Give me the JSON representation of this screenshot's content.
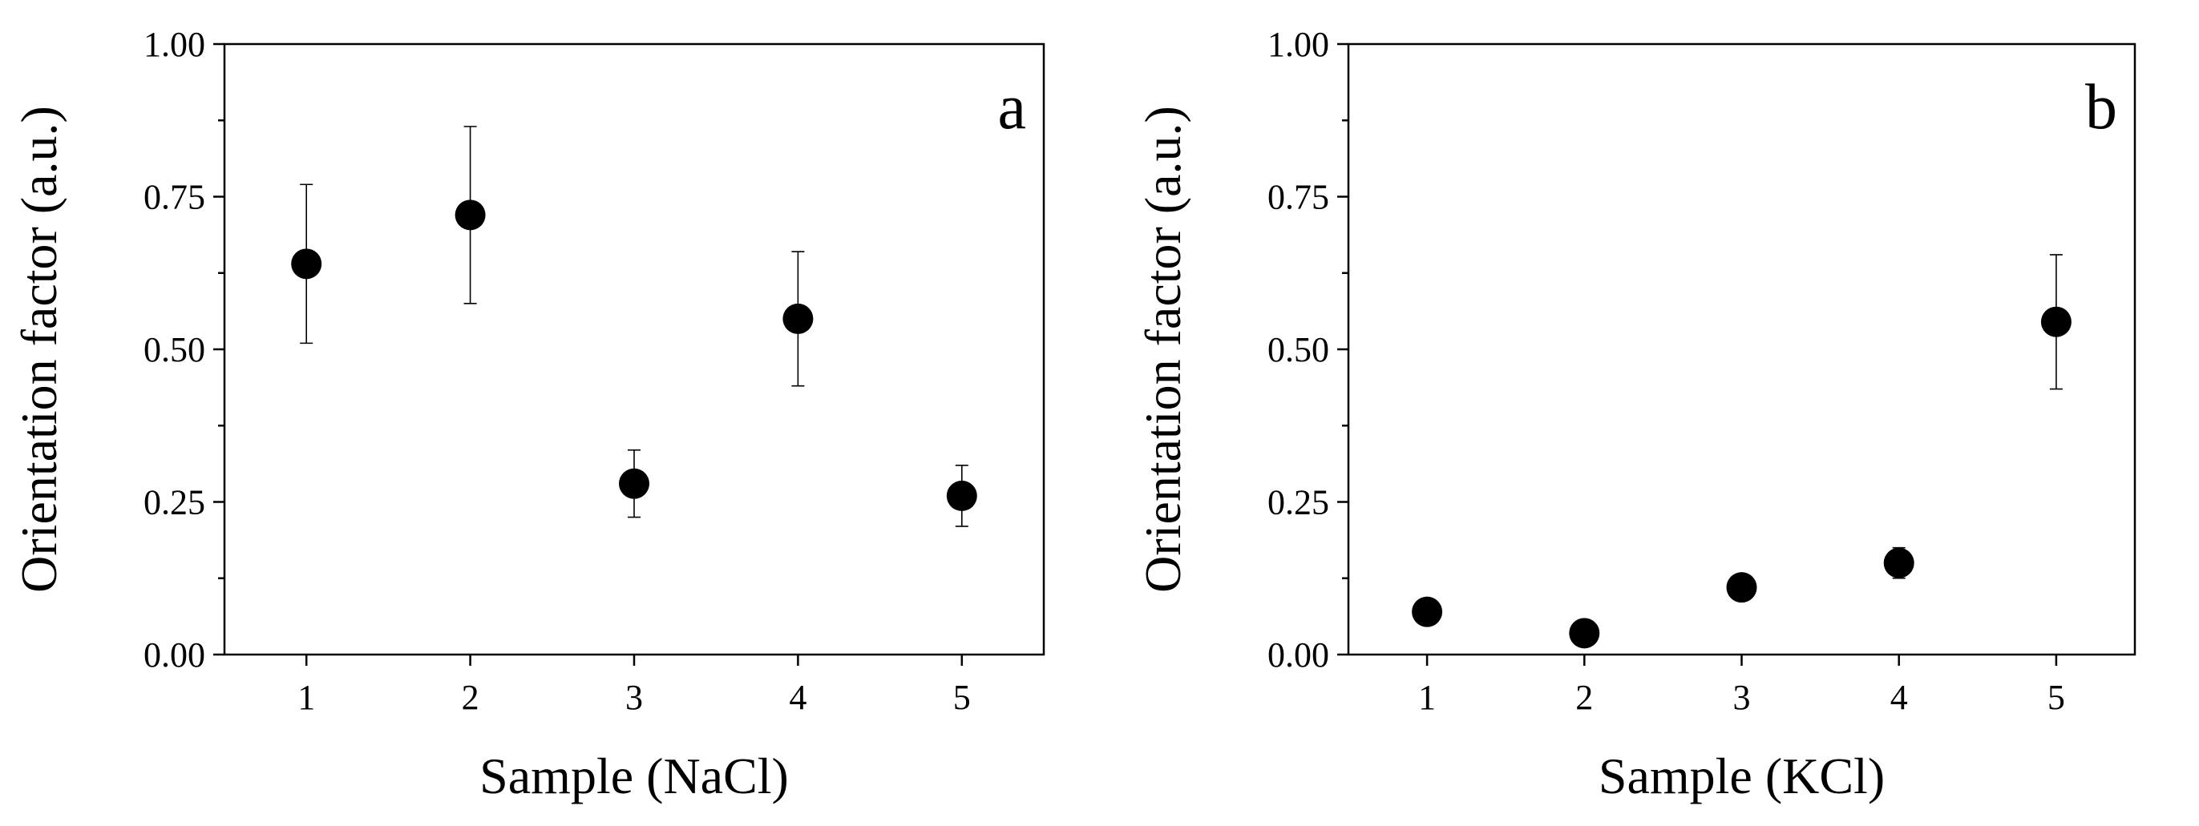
{
  "chart_data": [
    {
      "type": "scatter",
      "panel_label": "a",
      "xlabel": "Sample (NaCl)",
      "ylabel": "Orientation factor (a.u.)",
      "xlim": [
        0.5,
        5.5
      ],
      "ylim": [
        0,
        1
      ],
      "x_ticks": [
        "1",
        "2",
        "3",
        "4",
        "5"
      ],
      "y_ticks": [
        "0.00",
        "0.25",
        "0.50",
        "0.75",
        "1.00"
      ],
      "x": [
        1,
        2,
        3,
        4,
        5
      ],
      "y": [
        0.64,
        0.72,
        0.28,
        0.55,
        0.26
      ],
      "err": [
        0.13,
        0.145,
        0.055,
        0.11,
        0.05
      ],
      "marker_color": "#000000"
    },
    {
      "type": "scatter",
      "panel_label": "b",
      "xlabel": "Sample (KCl)",
      "ylabel": "Orientation factor (a.u.)",
      "xlim": [
        0.5,
        5.5
      ],
      "ylim": [
        0,
        1
      ],
      "x_ticks": [
        "1",
        "2",
        "3",
        "4",
        "5"
      ],
      "y_ticks": [
        "0.00",
        "0.25",
        "0.50",
        "0.75",
        "1.00"
      ],
      "x": [
        1,
        2,
        3,
        4,
        5
      ],
      "y": [
        0.07,
        0.035,
        0.11,
        0.15,
        0.545
      ],
      "err": [
        0.0,
        0.0,
        0.0,
        0.025,
        0.11
      ],
      "marker_color": "#000000"
    }
  ]
}
